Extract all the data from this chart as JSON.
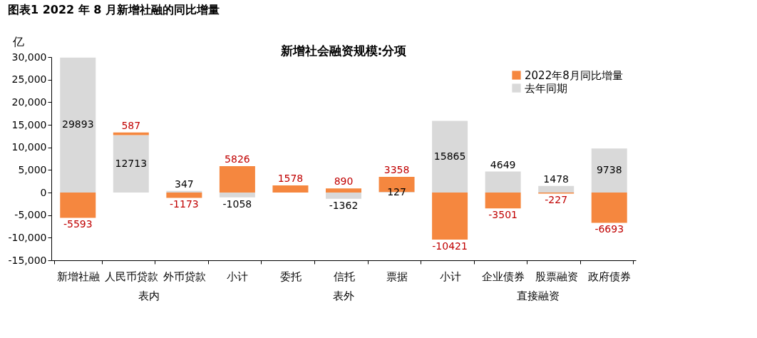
{
  "chart_data": {
    "type": "bar",
    "title": "图表1 2022 年 8 月新增社融的同比增量",
    "subtitle": "新增社会融资规模:分项",
    "ylabel": "亿",
    "categories": [
      "新增社融",
      "人民币贷款",
      "外币贷款",
      "小计",
      "委托",
      "信托",
      "票据",
      "小计",
      "企业债券",
      "股票融资",
      "政府债券"
    ],
    "series": [
      {
        "name": "去年同期",
        "color": "#d9d9d9",
        "values": [
          29893,
          12713,
          347,
          -1058,
          null,
          -1362,
          127,
          15865,
          4649,
          1478,
          9738
        ]
      },
      {
        "name": "2022年8月同比增量",
        "color": "#f5873f",
        "values": [
          -5593,
          587,
          -1173,
          5826,
          1578,
          890,
          3358,
          -10421,
          -3501,
          -227,
          -6693
        ]
      }
    ],
    "stacked": true,
    "data_labels": true,
    "ylim": [
      -15000,
      30000
    ],
    "yticks": [
      {
        "value": -15000,
        "label": "-15,000"
      },
      {
        "value": -10000,
        "label": "-10,000"
      },
      {
        "value": -5000,
        "label": "-5,000"
      },
      0,
      {
        "value": 5000,
        "label": "5,000"
      },
      {
        "value": 10000,
        "label": "10,000"
      },
      {
        "value": 15000,
        "label": "15,000"
      },
      {
        "value": 20000,
        "label": "20,000"
      },
      {
        "value": 25000,
        "label": "25,000"
      },
      {
        "value": 30000,
        "label": "30,000"
      }
    ],
    "grid": false,
    "legend": "top right",
    "annotations": [
      "表内",
      "表外",
      "直接融资"
    ]
  }
}
